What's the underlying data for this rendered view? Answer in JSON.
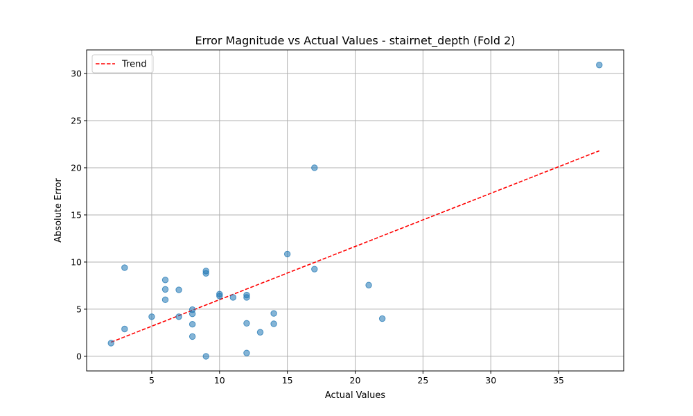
{
  "chart_data": {
    "type": "scatter",
    "title": "Error Magnitude vs Actual Values - stairnet_depth (Fold 2)",
    "xlabel": "Actual Values",
    "ylabel": "Absolute Error",
    "xlim": [
      0.2,
      39.8
    ],
    "ylim": [
      -1.55,
      32.5
    ],
    "xticks": [
      5,
      10,
      15,
      20,
      25,
      30,
      35
    ],
    "yticks": [
      0,
      5,
      10,
      15,
      20,
      25,
      30
    ],
    "grid": true,
    "legend": {
      "position": "upper-left",
      "entries": [
        "Trend"
      ]
    },
    "colors": {
      "points": "#1f77b4",
      "trend": "#ff0000",
      "grid": "#b0b0b0"
    },
    "points": [
      [
        2,
        1.4
      ],
      [
        3,
        9.4
      ],
      [
        3,
        2.9
      ],
      [
        5,
        4.2
      ],
      [
        6,
        8.1
      ],
      [
        6,
        7.1
      ],
      [
        6,
        6.0
      ],
      [
        7,
        7.05
      ],
      [
        7,
        4.2
      ],
      [
        8,
        4.95
      ],
      [
        8,
        4.5
      ],
      [
        8,
        3.4
      ],
      [
        8,
        2.1
      ],
      [
        9,
        9.05
      ],
      [
        9,
        8.8
      ],
      [
        9,
        0.0
      ],
      [
        10,
        6.6
      ],
      [
        10,
        6.4
      ],
      [
        11,
        6.25
      ],
      [
        12,
        6.5
      ],
      [
        12,
        6.25
      ],
      [
        12,
        3.5
      ],
      [
        12,
        0.35
      ],
      [
        13,
        2.55
      ],
      [
        14,
        4.55
      ],
      [
        14,
        3.45
      ],
      [
        15,
        10.85
      ],
      [
        17,
        20.0
      ],
      [
        17,
        9.25
      ],
      [
        21,
        7.55
      ],
      [
        22,
        4.0
      ],
      [
        38,
        30.9
      ]
    ],
    "trend": {
      "name": "Trend",
      "x": [
        2,
        38
      ],
      "y": [
        1.5,
        21.8
      ]
    }
  }
}
